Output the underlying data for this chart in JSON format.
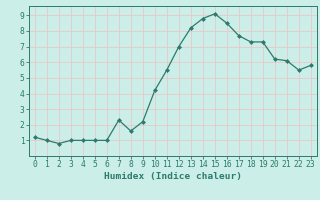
{
  "x": [
    0,
    1,
    2,
    3,
    4,
    5,
    6,
    7,
    8,
    9,
    10,
    11,
    12,
    13,
    14,
    15,
    16,
    17,
    18,
    19,
    20,
    21,
    22,
    23
  ],
  "y": [
    1.2,
    1.0,
    0.8,
    1.0,
    1.0,
    1.0,
    1.0,
    2.3,
    1.6,
    2.2,
    4.2,
    5.5,
    7.0,
    8.2,
    8.8,
    9.1,
    8.5,
    7.7,
    7.3,
    7.3,
    6.2,
    6.1,
    5.5,
    5.8
  ],
  "line_color": "#2d7b6e",
  "marker": "D",
  "marker_size": 2.0,
  "bg_color": "#cceee8",
  "grid_color": "#e8c8c8",
  "xlabel": "Humidex (Indice chaleur)",
  "ylim": [
    0,
    9.6
  ],
  "xlim": [
    -0.5,
    23.5
  ],
  "yticks": [
    1,
    2,
    3,
    4,
    5,
    6,
    7,
    8,
    9
  ],
  "xticks": [
    0,
    1,
    2,
    3,
    4,
    5,
    6,
    7,
    8,
    9,
    10,
    11,
    12,
    13,
    14,
    15,
    16,
    17,
    18,
    19,
    20,
    21,
    22,
    23
  ],
  "tick_color": "#2d7b6e",
  "label_fontsize": 6.5,
  "tick_fontsize": 5.8,
  "xlabel_fontsize": 6.8,
  "linewidth": 0.9
}
